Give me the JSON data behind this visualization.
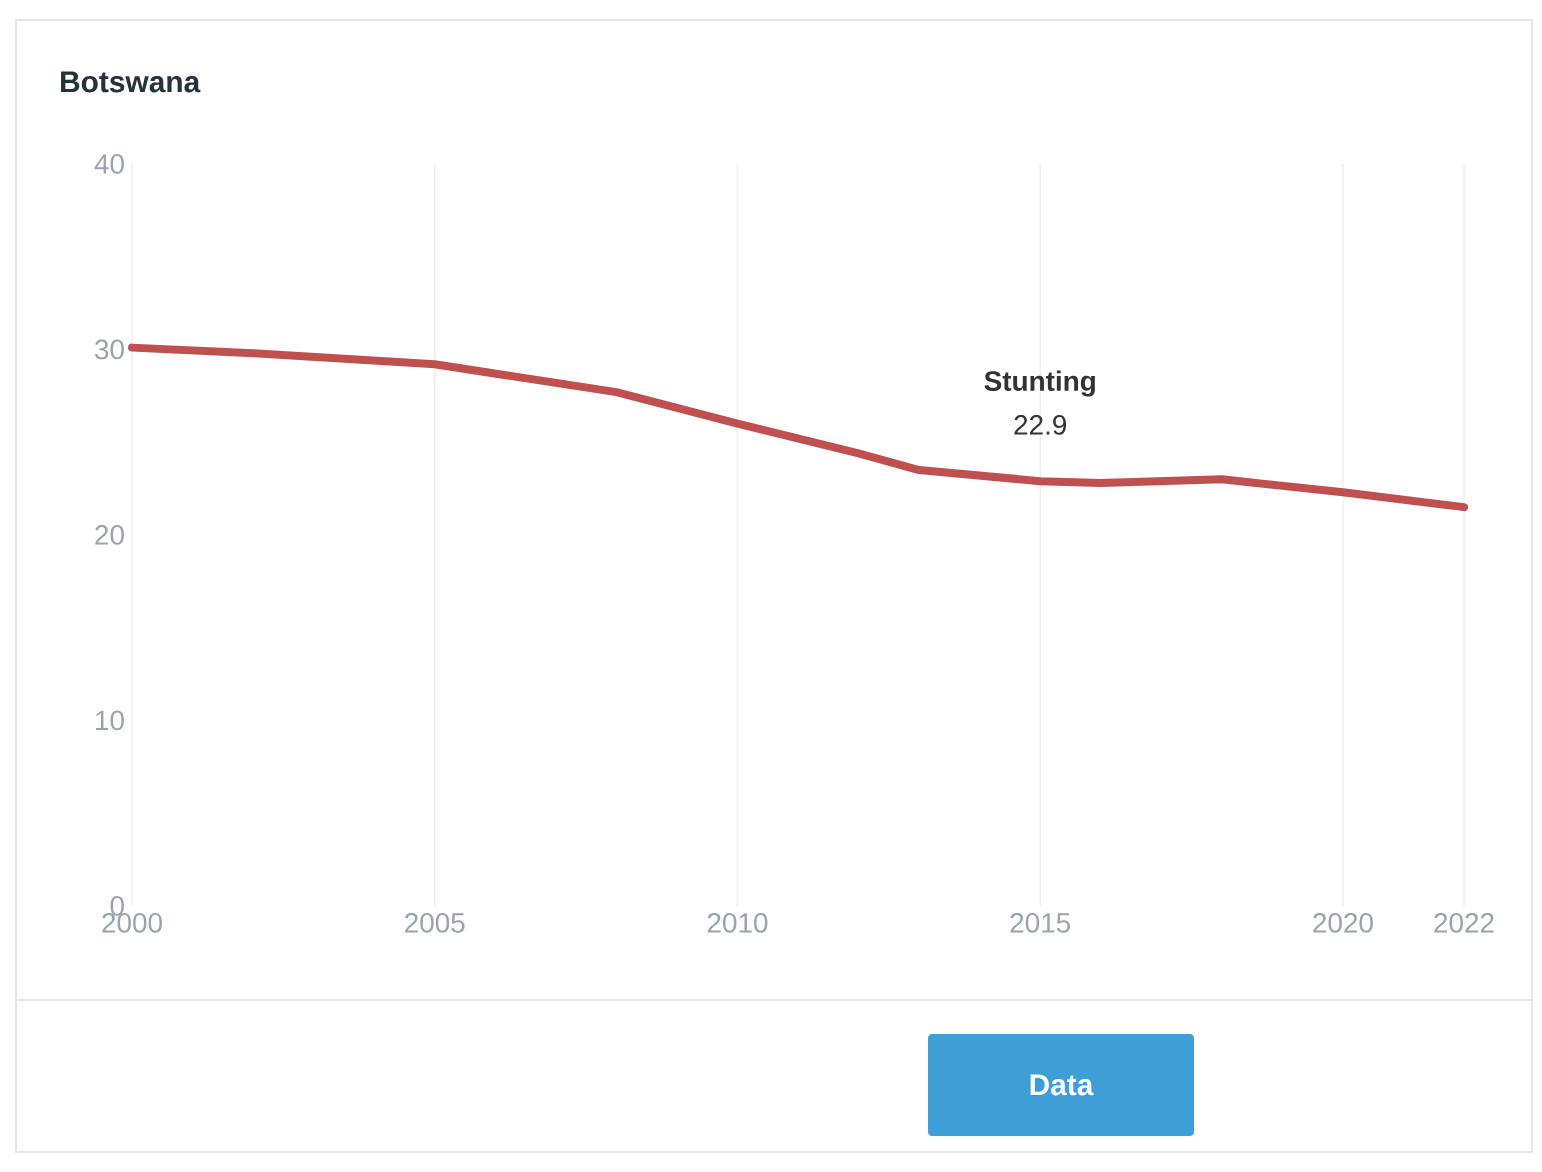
{
  "chart_data": {
    "type": "line",
    "title": "Botswana",
    "x": [
      2000,
      2002,
      2005,
      2008,
      2010,
      2012,
      2013,
      2015,
      2016,
      2018,
      2020,
      2022
    ],
    "series": [
      {
        "name": "Stunting",
        "color": "#c0504f",
        "values": [
          30.1,
          29.8,
          29.2,
          27.7,
          26.0,
          24.4,
          23.5,
          22.9,
          22.8,
          23.0,
          22.3,
          21.5
        ],
        "value_labels": [
          null,
          null,
          null,
          null,
          null,
          null,
          null,
          "22.9",
          null,
          null,
          null,
          null
        ]
      }
    ],
    "xlim": [
      2000,
      2022
    ],
    "ylim": [
      0,
      40
    ],
    "xticks": [
      2000,
      2005,
      2010,
      2015,
      2020,
      2022
    ],
    "yticks": [
      0,
      10,
      20,
      30,
      40
    ],
    "grid": "x",
    "marker": "none",
    "line_style": "solid",
    "annotations": [
      "Data"
    ]
  }
}
